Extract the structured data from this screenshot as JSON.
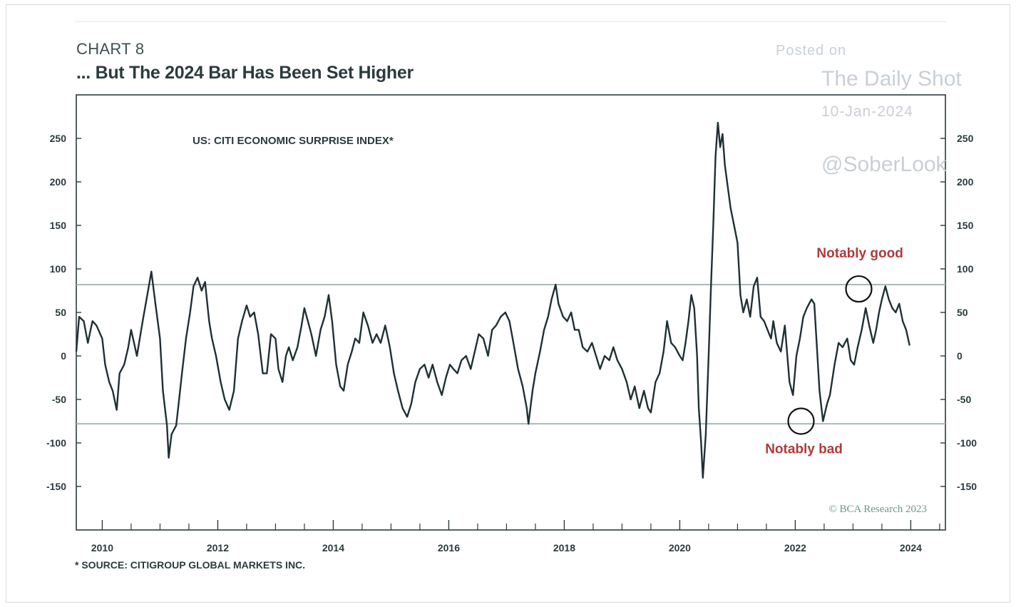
{
  "header": {
    "chart_number": "CHART 8",
    "title": "... But The 2024 Bar Has Been Set Higher"
  },
  "watermark": {
    "line1": "Posted on",
    "line2": "The Daily Shot",
    "line3": "10-Jan-2024",
    "line4": "@SoberLook"
  },
  "footer": {
    "source": "* SOURCE: CITIGROUP GLOBAL MARKETS INC.",
    "copyright": "© BCA Research 2023"
  },
  "colors": {
    "line": "#1f3034",
    "threshold": "#a9b9b6",
    "annotation": "#b03a3a",
    "axis": "#2b3b3d"
  },
  "chart_data": {
    "type": "line",
    "title": "",
    "series_title": "US: CITI ECONOMIC SURPRISE INDEX*",
    "xlabel": "",
    "ylabel": "",
    "xlim": [
      2009.55,
      2024.6
    ],
    "ylim": [
      -200,
      300
    ],
    "y_ticks": [
      250,
      200,
      150,
      100,
      50,
      0,
      -50,
      -100,
      -150
    ],
    "y_tick_labels": [
      "250",
      "200",
      "150",
      "100",
      "50",
      "0",
      "-50",
      "-100",
      "-150"
    ],
    "x_tick_labels": [
      "2010",
      "2012",
      "2014",
      "2016",
      "2018",
      "2020",
      "2022",
      "2024"
    ],
    "x_tick_positions": [
      2010,
      2012,
      2014,
      2016,
      2018,
      2020,
      2022,
      2024
    ],
    "x_minor_ticks": [
      2010.5,
      2011,
      2011.5,
      2012.5,
      2013,
      2013.5,
      2014.5,
      2015,
      2015.5,
      2016.5,
      2017,
      2017.5,
      2018.5,
      2019,
      2019.5,
      2020.5,
      2021,
      2021.5,
      2022.5,
      2023,
      2023.5,
      2024.5
    ],
    "grid": false,
    "legend": "none",
    "thresholds": [
      {
        "value": 82
      },
      {
        "value": -78
      }
    ],
    "annotations": [
      {
        "text": "Notably good",
        "x": 2023.12,
        "y": 113
      },
      {
        "text": "Notably bad",
        "x": 2022.15,
        "y": -112
      }
    ],
    "circles": [
      {
        "x": 2023.1,
        "y": 77
      },
      {
        "x": 2022.1,
        "y": -75
      }
    ],
    "series": [
      {
        "values": [
          [
            2009.55,
            5
          ],
          [
            2009.6,
            45
          ],
          [
            2009.68,
            40
          ],
          [
            2009.75,
            15
          ],
          [
            2009.83,
            40
          ],
          [
            2009.9,
            35
          ],
          [
            2010.0,
            20
          ],
          [
            2010.05,
            -10
          ],
          [
            2010.12,
            -30
          ],
          [
            2010.18,
            -40
          ],
          [
            2010.25,
            -62
          ],
          [
            2010.3,
            -20
          ],
          [
            2010.38,
            -10
          ],
          [
            2010.45,
            10
          ],
          [
            2010.5,
            30
          ],
          [
            2010.55,
            15
          ],
          [
            2010.6,
            0
          ],
          [
            2010.7,
            40
          ],
          [
            2010.78,
            70
          ],
          [
            2010.85,
            97
          ],
          [
            2010.92,
            60
          ],
          [
            2011.0,
            20
          ],
          [
            2011.05,
            -40
          ],
          [
            2011.12,
            -80
          ],
          [
            2011.15,
            -117
          ],
          [
            2011.2,
            -90
          ],
          [
            2011.28,
            -80
          ],
          [
            2011.33,
            -50
          ],
          [
            2011.38,
            -20
          ],
          [
            2011.45,
            20
          ],
          [
            2011.52,
            50
          ],
          [
            2011.58,
            80
          ],
          [
            2011.65,
            90
          ],
          [
            2011.72,
            75
          ],
          [
            2011.78,
            85
          ],
          [
            2011.85,
            40
          ],
          [
            2011.9,
            20
          ],
          [
            2011.97,
            0
          ],
          [
            2012.05,
            -30
          ],
          [
            2012.12,
            -50
          ],
          [
            2012.2,
            -62
          ],
          [
            2012.28,
            -40
          ],
          [
            2012.35,
            20
          ],
          [
            2012.42,
            40
          ],
          [
            2012.5,
            58
          ],
          [
            2012.56,
            45
          ],
          [
            2012.63,
            50
          ],
          [
            2012.7,
            25
          ],
          [
            2012.78,
            -20
          ],
          [
            2012.85,
            -20
          ],
          [
            2012.92,
            25
          ],
          [
            2013.0,
            20
          ],
          [
            2013.05,
            -15
          ],
          [
            2013.12,
            -30
          ],
          [
            2013.18,
            0
          ],
          [
            2013.23,
            10
          ],
          [
            2013.3,
            -5
          ],
          [
            2013.38,
            10
          ],
          [
            2013.45,
            35
          ],
          [
            2013.5,
            55
          ],
          [
            2013.56,
            40
          ],
          [
            2013.62,
            25
          ],
          [
            2013.7,
            0
          ],
          [
            2013.78,
            30
          ],
          [
            2013.85,
            45
          ],
          [
            2013.92,
            70
          ],
          [
            2013.98,
            40
          ],
          [
            2014.05,
            -10
          ],
          [
            2014.12,
            -35
          ],
          [
            2014.18,
            -40
          ],
          [
            2014.25,
            -10
          ],
          [
            2014.32,
            5
          ],
          [
            2014.38,
            20
          ],
          [
            2014.45,
            15
          ],
          [
            2014.52,
            50
          ],
          [
            2014.6,
            35
          ],
          [
            2014.68,
            15
          ],
          [
            2014.75,
            25
          ],
          [
            2014.82,
            15
          ],
          [
            2014.9,
            35
          ],
          [
            2014.98,
            10
          ],
          [
            2015.05,
            -20
          ],
          [
            2015.12,
            -40
          ],
          [
            2015.2,
            -60
          ],
          [
            2015.28,
            -70
          ],
          [
            2015.35,
            -55
          ],
          [
            2015.42,
            -30
          ],
          [
            2015.5,
            -15
          ],
          [
            2015.58,
            -10
          ],
          [
            2015.65,
            -25
          ],
          [
            2015.72,
            -10
          ],
          [
            2015.8,
            -30
          ],
          [
            2015.88,
            -45
          ],
          [
            2015.95,
            -25
          ],
          [
            2016.02,
            -10
          ],
          [
            2016.08,
            -15
          ],
          [
            2016.15,
            -20
          ],
          [
            2016.22,
            -5
          ],
          [
            2016.3,
            0
          ],
          [
            2016.38,
            -15
          ],
          [
            2016.45,
            5
          ],
          [
            2016.52,
            25
          ],
          [
            2016.6,
            20
          ],
          [
            2016.68,
            0
          ],
          [
            2016.75,
            30
          ],
          [
            2016.82,
            35
          ],
          [
            2016.9,
            45
          ],
          [
            2016.98,
            50
          ],
          [
            2017.05,
            40
          ],
          [
            2017.12,
            15
          ],
          [
            2017.2,
            -15
          ],
          [
            2017.28,
            -35
          ],
          [
            2017.35,
            -60
          ],
          [
            2017.38,
            -78
          ],
          [
            2017.45,
            -40
          ],
          [
            2017.5,
            -20
          ],
          [
            2017.58,
            5
          ],
          [
            2017.65,
            30
          ],
          [
            2017.72,
            45
          ],
          [
            2017.78,
            65
          ],
          [
            2017.85,
            82
          ],
          [
            2017.9,
            60
          ],
          [
            2017.98,
            45
          ],
          [
            2018.05,
            40
          ],
          [
            2018.12,
            50
          ],
          [
            2018.18,
            30
          ],
          [
            2018.25,
            30
          ],
          [
            2018.32,
            10
          ],
          [
            2018.4,
            5
          ],
          [
            2018.48,
            15
          ],
          [
            2018.55,
            0
          ],
          [
            2018.62,
            -15
          ],
          [
            2018.7,
            0
          ],
          [
            2018.78,
            -5
          ],
          [
            2018.85,
            10
          ],
          [
            2018.92,
            -5
          ],
          [
            2019.0,
            -15
          ],
          [
            2019.08,
            -30
          ],
          [
            2019.15,
            -50
          ],
          [
            2019.22,
            -35
          ],
          [
            2019.3,
            -60
          ],
          [
            2019.38,
            -40
          ],
          [
            2019.45,
            -60
          ],
          [
            2019.5,
            -65
          ],
          [
            2019.58,
            -30
          ],
          [
            2019.65,
            -20
          ],
          [
            2019.72,
            5
          ],
          [
            2019.78,
            40
          ],
          [
            2019.85,
            15
          ],
          [
            2019.92,
            10
          ],
          [
            2020.0,
            0
          ],
          [
            2020.05,
            -5
          ],
          [
            2020.1,
            15
          ],
          [
            2020.15,
            40
          ],
          [
            2020.2,
            70
          ],
          [
            2020.25,
            55
          ],
          [
            2020.3,
            0
          ],
          [
            2020.33,
            -60
          ],
          [
            2020.37,
            -100
          ],
          [
            2020.4,
            -140
          ],
          [
            2020.45,
            -90
          ],
          [
            2020.5,
            0
          ],
          [
            2020.54,
            80
          ],
          [
            2020.58,
            150
          ],
          [
            2020.62,
            230
          ],
          [
            2020.66,
            268
          ],
          [
            2020.7,
            240
          ],
          [
            2020.74,
            255
          ],
          [
            2020.78,
            220
          ],
          [
            2020.82,
            200
          ],
          [
            2020.88,
            170
          ],
          [
            2020.94,
            150
          ],
          [
            2021.0,
            130
          ],
          [
            2021.05,
            70
          ],
          [
            2021.1,
            50
          ],
          [
            2021.16,
            65
          ],
          [
            2021.22,
            45
          ],
          [
            2021.28,
            80
          ],
          [
            2021.34,
            90
          ],
          [
            2021.4,
            45
          ],
          [
            2021.46,
            40
          ],
          [
            2021.52,
            30
          ],
          [
            2021.58,
            20
          ],
          [
            2021.62,
            40
          ],
          [
            2021.68,
            15
          ],
          [
            2021.75,
            5
          ],
          [
            2021.82,
            35
          ],
          [
            2021.9,
            -30
          ],
          [
            2021.96,
            -45
          ],
          [
            2022.02,
            0
          ],
          [
            2022.08,
            20
          ],
          [
            2022.14,
            45
          ],
          [
            2022.2,
            55
          ],
          [
            2022.28,
            65
          ],
          [
            2022.33,
            60
          ],
          [
            2022.37,
            15
          ],
          [
            2022.42,
            -40
          ],
          [
            2022.48,
            -75
          ],
          [
            2022.55,
            -55
          ],
          [
            2022.6,
            -45
          ],
          [
            2022.68,
            -10
          ],
          [
            2022.75,
            15
          ],
          [
            2022.82,
            10
          ],
          [
            2022.9,
            20
          ],
          [
            2022.96,
            -5
          ],
          [
            2023.02,
            -10
          ],
          [
            2023.08,
            10
          ],
          [
            2023.15,
            30
          ],
          [
            2023.22,
            55
          ],
          [
            2023.28,
            35
          ],
          [
            2023.35,
            15
          ],
          [
            2023.4,
            30
          ],
          [
            2023.45,
            50
          ],
          [
            2023.5,
            65
          ],
          [
            2023.56,
            80
          ],
          [
            2023.62,
            65
          ],
          [
            2023.68,
            55
          ],
          [
            2023.74,
            50
          ],
          [
            2023.8,
            60
          ],
          [
            2023.86,
            40
          ],
          [
            2023.92,
            30
          ],
          [
            2023.98,
            12
          ]
        ]
      }
    ]
  }
}
